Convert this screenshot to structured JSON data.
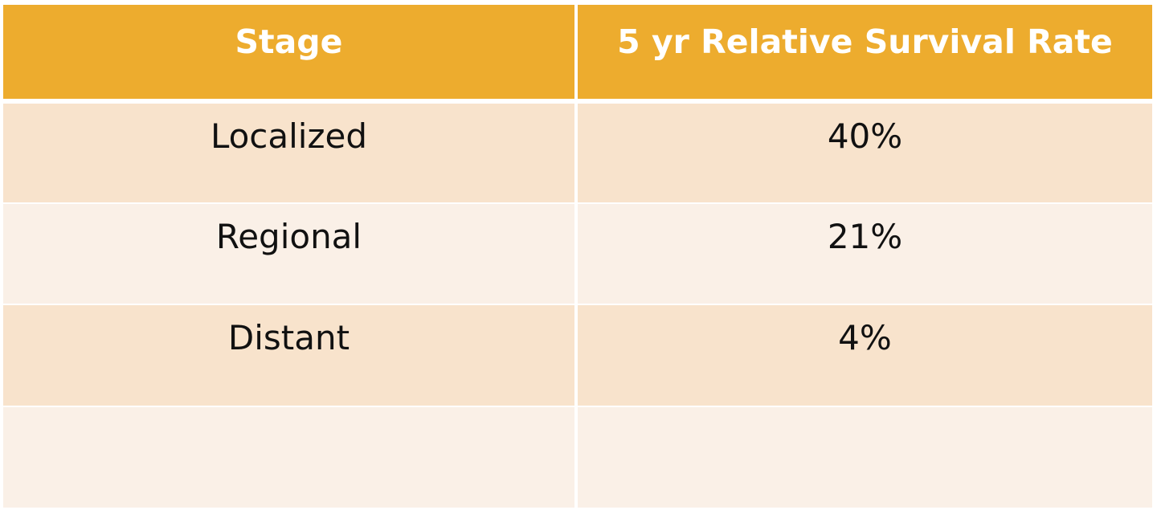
{
  "table": {
    "headers": [
      "Stage",
      "5  yr Relative Survival Rate"
    ],
    "rows": [
      {
        "stage": "Localized",
        "rate": "40%"
      },
      {
        "stage": "Regional",
        "rate": "21%"
      },
      {
        "stage": "Distant",
        "rate": "4%"
      },
      {
        "stage": "",
        "rate": ""
      }
    ],
    "colors": {
      "header": "#EDAC2E",
      "band_dark": "#F8E3CC",
      "band_light": "#FAF0E7"
    }
  }
}
